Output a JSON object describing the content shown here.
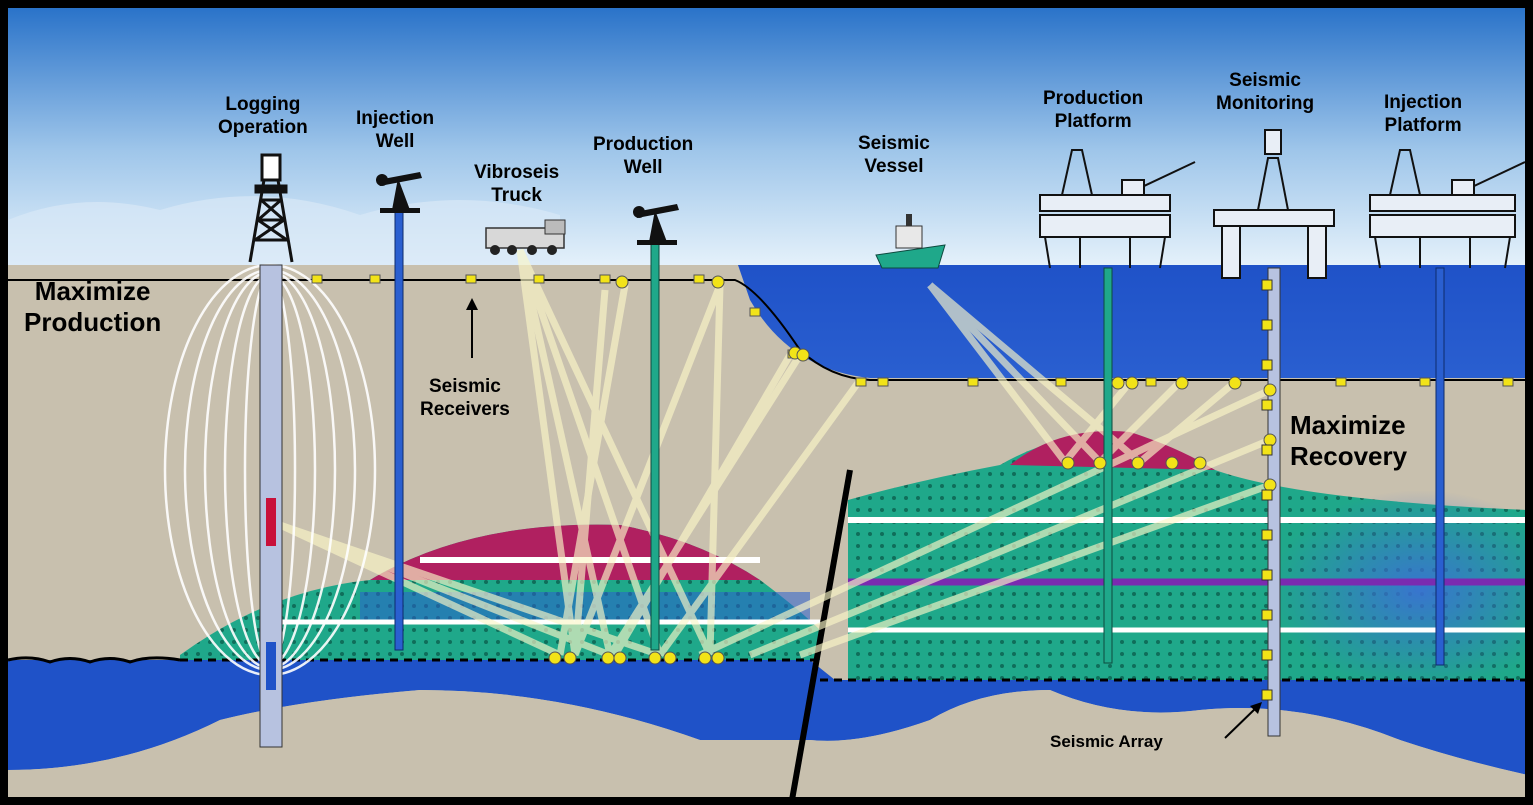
{
  "labels": {
    "logging_operation": [
      "Logging",
      "Operation"
    ],
    "injection_well": [
      "Injection",
      "Well"
    ],
    "vibroseis_truck": [
      "Vibroseis",
      "Truck"
    ],
    "production_well": [
      "Production",
      "Well"
    ],
    "seismic_vessel": [
      "Seismic",
      "Vessel"
    ],
    "production_platform": [
      "Production",
      "Platform"
    ],
    "seismic_monitoring": [
      "Seismic",
      "Monitoring"
    ],
    "injection_platform": [
      "Injection",
      "Platform"
    ],
    "maximize_production": [
      "Maximize",
      "Production"
    ],
    "maximize_recovery": [
      "Maximize",
      "Recovery"
    ],
    "seismic_receivers": [
      "Seismic",
      "Receivers"
    ],
    "seismic_array": "Seismic Array"
  },
  "colors": {
    "sky_top": "#2a73c9",
    "sky_bottom": "#e6f2fb",
    "sea": "#1f52c8",
    "ground": "#c8c0ae",
    "reservoir_green": "#1fa88a",
    "gas_cap": "#b02060",
    "seismic_ray": "#fbf7c8",
    "receiver": "#f2e318",
    "deep_blue": "#1f52c8"
  }
}
